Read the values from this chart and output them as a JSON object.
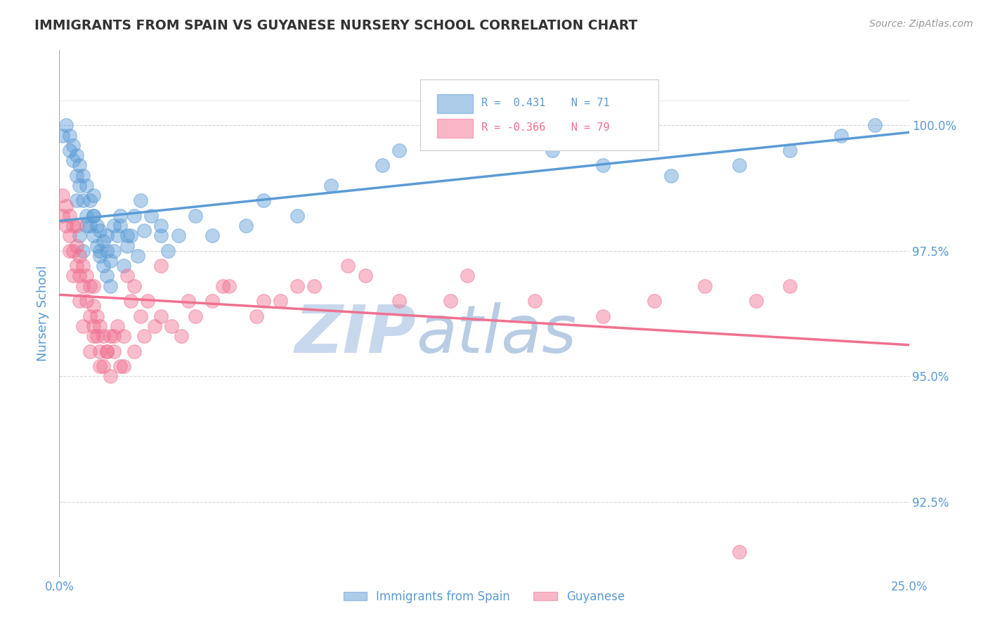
{
  "title": "IMMIGRANTS FROM SPAIN VS GUYANESE NURSERY SCHOOL CORRELATION CHART",
  "source_text": "Source: ZipAtlas.com",
  "ylabel": "Nursery School",
  "xlim": [
    0.0,
    25.0
  ],
  "ylim": [
    91.0,
    101.5
  ],
  "yticks": [
    92.5,
    95.0,
    97.5,
    100.0
  ],
  "ytick_labels": [
    "92.5%",
    "95.0%",
    "97.5%",
    "100.0%"
  ],
  "xticks": [
    0.0,
    25.0
  ],
  "xtick_labels": [
    "0.0%",
    "25.0%"
  ],
  "legend_entry1": "Immigrants from Spain",
  "legend_entry2": "Guyanese",
  "R1": 0.431,
  "N1": 71,
  "R2": -0.366,
  "N2": 79,
  "blue_color": "#5b9bd5",
  "pink_color": "#f07090",
  "watermark_zip_color": "#c8d8ec",
  "watermark_atlas_color": "#b8cce4",
  "background_color": "#ffffff",
  "title_color": "#333333",
  "axis_label_color": "#5b9bd5",
  "tick_label_color": "#5b9bd5",
  "grid_color": "#cccccc",
  "blue_scatter_x": [
    0.1,
    0.2,
    0.3,
    0.3,
    0.4,
    0.4,
    0.5,
    0.5,
    0.6,
    0.6,
    0.7,
    0.7,
    0.8,
    0.8,
    0.9,
    0.9,
    1.0,
    1.0,
    1.0,
    1.1,
    1.1,
    1.2,
    1.2,
    1.3,
    1.3,
    1.4,
    1.4,
    1.5,
    1.5,
    1.6,
    1.7,
    1.8,
    1.9,
    2.0,
    2.1,
    2.2,
    2.3,
    2.5,
    2.7,
    3.0,
    3.2,
    3.5,
    4.0,
    4.5,
    5.5,
    6.0,
    7.0,
    8.0,
    9.5,
    10.0,
    11.0,
    13.0,
    14.5,
    16.0,
    18.0,
    20.0,
    21.5,
    23.0,
    24.0,
    0.5,
    0.6,
    0.7,
    0.8,
    1.0,
    1.2,
    1.4,
    1.6,
    1.8,
    2.0,
    2.4,
    3.0
  ],
  "blue_scatter_y": [
    99.8,
    100.0,
    99.5,
    99.8,
    99.3,
    99.6,
    99.0,
    99.4,
    98.8,
    99.2,
    98.5,
    99.0,
    98.2,
    98.8,
    98.0,
    98.5,
    97.8,
    98.2,
    98.6,
    97.6,
    98.0,
    97.4,
    97.9,
    97.2,
    97.7,
    97.0,
    97.5,
    96.8,
    97.3,
    97.5,
    97.8,
    98.0,
    97.2,
    97.6,
    97.8,
    98.2,
    97.4,
    97.9,
    98.2,
    98.0,
    97.5,
    97.8,
    98.2,
    97.8,
    98.0,
    98.5,
    98.2,
    98.8,
    99.2,
    99.5,
    99.8,
    100.0,
    99.5,
    99.2,
    99.0,
    99.2,
    99.5,
    99.8,
    100.0,
    98.5,
    97.8,
    97.5,
    98.0,
    98.2,
    97.5,
    97.8,
    98.0,
    98.2,
    97.8,
    98.5,
    97.8
  ],
  "pink_scatter_x": [
    0.1,
    0.1,
    0.2,
    0.2,
    0.3,
    0.3,
    0.4,
    0.4,
    0.5,
    0.5,
    0.5,
    0.6,
    0.6,
    0.7,
    0.7,
    0.8,
    0.8,
    0.9,
    0.9,
    1.0,
    1.0,
    1.0,
    1.1,
    1.1,
    1.2,
    1.2,
    1.3,
    1.3,
    1.4,
    1.5,
    1.5,
    1.6,
    1.7,
    1.8,
    1.9,
    2.0,
    2.1,
    2.2,
    2.4,
    2.6,
    2.8,
    3.0,
    3.3,
    3.6,
    4.0,
    4.5,
    5.0,
    5.8,
    6.5,
    7.5,
    8.5,
    10.0,
    12.0,
    14.0,
    16.0,
    17.5,
    19.0,
    20.5,
    21.5,
    0.3,
    0.4,
    0.6,
    0.7,
    0.9,
    1.0,
    1.2,
    1.4,
    1.6,
    1.9,
    2.2,
    2.5,
    3.0,
    3.8,
    4.8,
    6.0,
    7.0,
    9.0,
    11.5,
    20.0
  ],
  "pink_scatter_y": [
    98.2,
    98.6,
    98.0,
    98.4,
    97.8,
    98.2,
    97.5,
    98.0,
    97.2,
    97.6,
    98.0,
    97.0,
    97.4,
    96.8,
    97.2,
    96.5,
    97.0,
    96.2,
    96.8,
    96.0,
    96.4,
    96.8,
    95.8,
    96.2,
    95.5,
    96.0,
    95.2,
    95.8,
    95.5,
    95.0,
    95.8,
    95.5,
    96.0,
    95.2,
    95.8,
    97.0,
    96.5,
    96.8,
    96.2,
    96.5,
    96.0,
    97.2,
    96.0,
    95.8,
    96.2,
    96.5,
    96.8,
    96.2,
    96.5,
    96.8,
    97.2,
    96.5,
    97.0,
    96.5,
    96.2,
    96.5,
    96.8,
    96.5,
    96.8,
    97.5,
    97.0,
    96.5,
    96.0,
    95.5,
    95.8,
    95.2,
    95.5,
    95.8,
    95.2,
    95.5,
    95.8,
    96.2,
    96.5,
    96.8,
    96.5,
    96.8,
    97.0,
    96.5,
    91.5
  ]
}
